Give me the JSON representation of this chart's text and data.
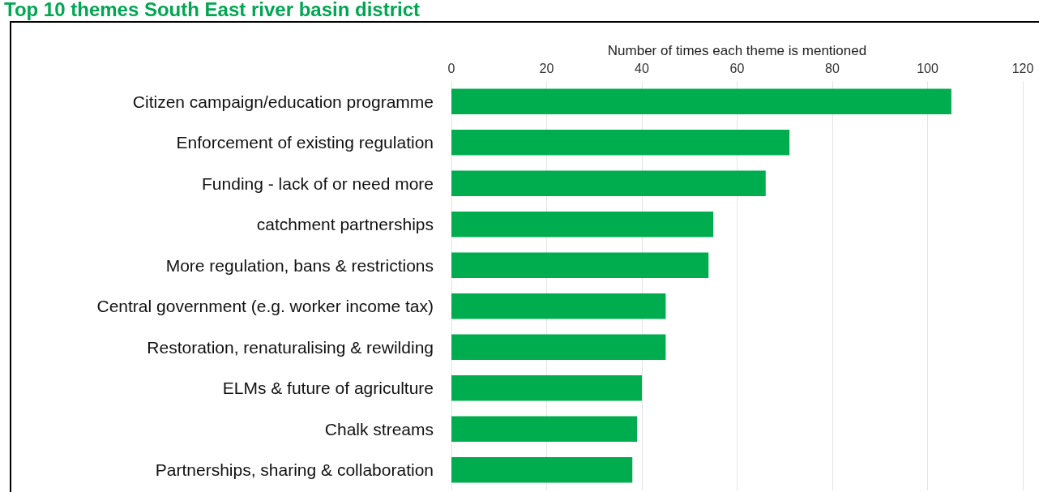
{
  "chart_data": {
    "type": "bar",
    "orientation": "horizontal",
    "title": "Top 10 themes South East river basin district",
    "xlabel": "Number of times each theme is mentioned",
    "categories": [
      "Citizen campaign/education programme",
      "Enforcement of existing regulation",
      "Funding - lack of or need more",
      "catchment partnerships",
      "More regulation, bans & restrictions",
      "Central government (e.g. worker income tax)",
      "Restoration, renaturalising & rewilding",
      "ELMs & future of agriculture",
      "Chalk streams",
      "Partnerships, sharing & collaboration"
    ],
    "values": [
      105,
      71,
      66,
      55,
      54,
      45,
      45,
      40,
      39,
      38
    ],
    "color": "#00ad4e",
    "xlim": [
      0,
      120
    ],
    "xticks": [
      0,
      20,
      40,
      60,
      80,
      100,
      120
    ],
    "grid": "x"
  }
}
